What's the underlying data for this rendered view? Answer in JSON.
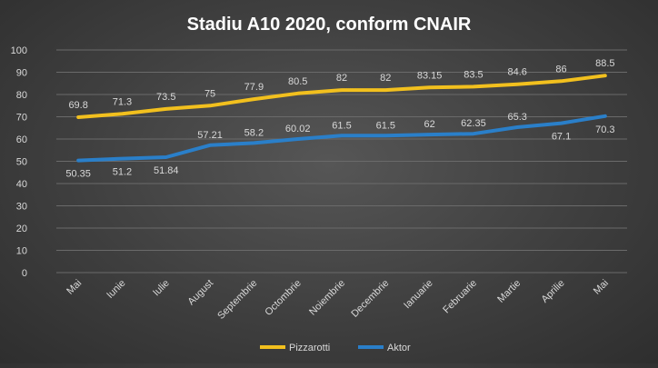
{
  "chart_data": {
    "type": "line",
    "title": "Stadiu A10 2020, conform CNAIR",
    "categories": [
      "Mai",
      "Iunie",
      "Iulie",
      "August",
      "Septembrie",
      "Octombrie",
      "Noiembrie",
      "Decembrie",
      "Ianuarie",
      "Februarie",
      "Martie",
      "Aprilie",
      "Mai"
    ],
    "ylim": [
      0,
      100
    ],
    "yticks": [
      0,
      10,
      20,
      30,
      40,
      50,
      60,
      70,
      80,
      90,
      100
    ],
    "grid": true,
    "legend_position": "bottom",
    "series": [
      {
        "name": "Pizzarotti",
        "color": "#f2c01e",
        "values": [
          69.8,
          71.3,
          73.5,
          75,
          77.9,
          80.5,
          82,
          82,
          83.15,
          83.5,
          84.6,
          86,
          88.5
        ]
      },
      {
        "name": "Aktor",
        "color": "#2a7fc9",
        "values": [
          50.35,
          51.2,
          51.84,
          57.21,
          58.2,
          60.02,
          61.5,
          61.5,
          62,
          62.35,
          65.3,
          67.1,
          70.3
        ]
      }
    ]
  }
}
